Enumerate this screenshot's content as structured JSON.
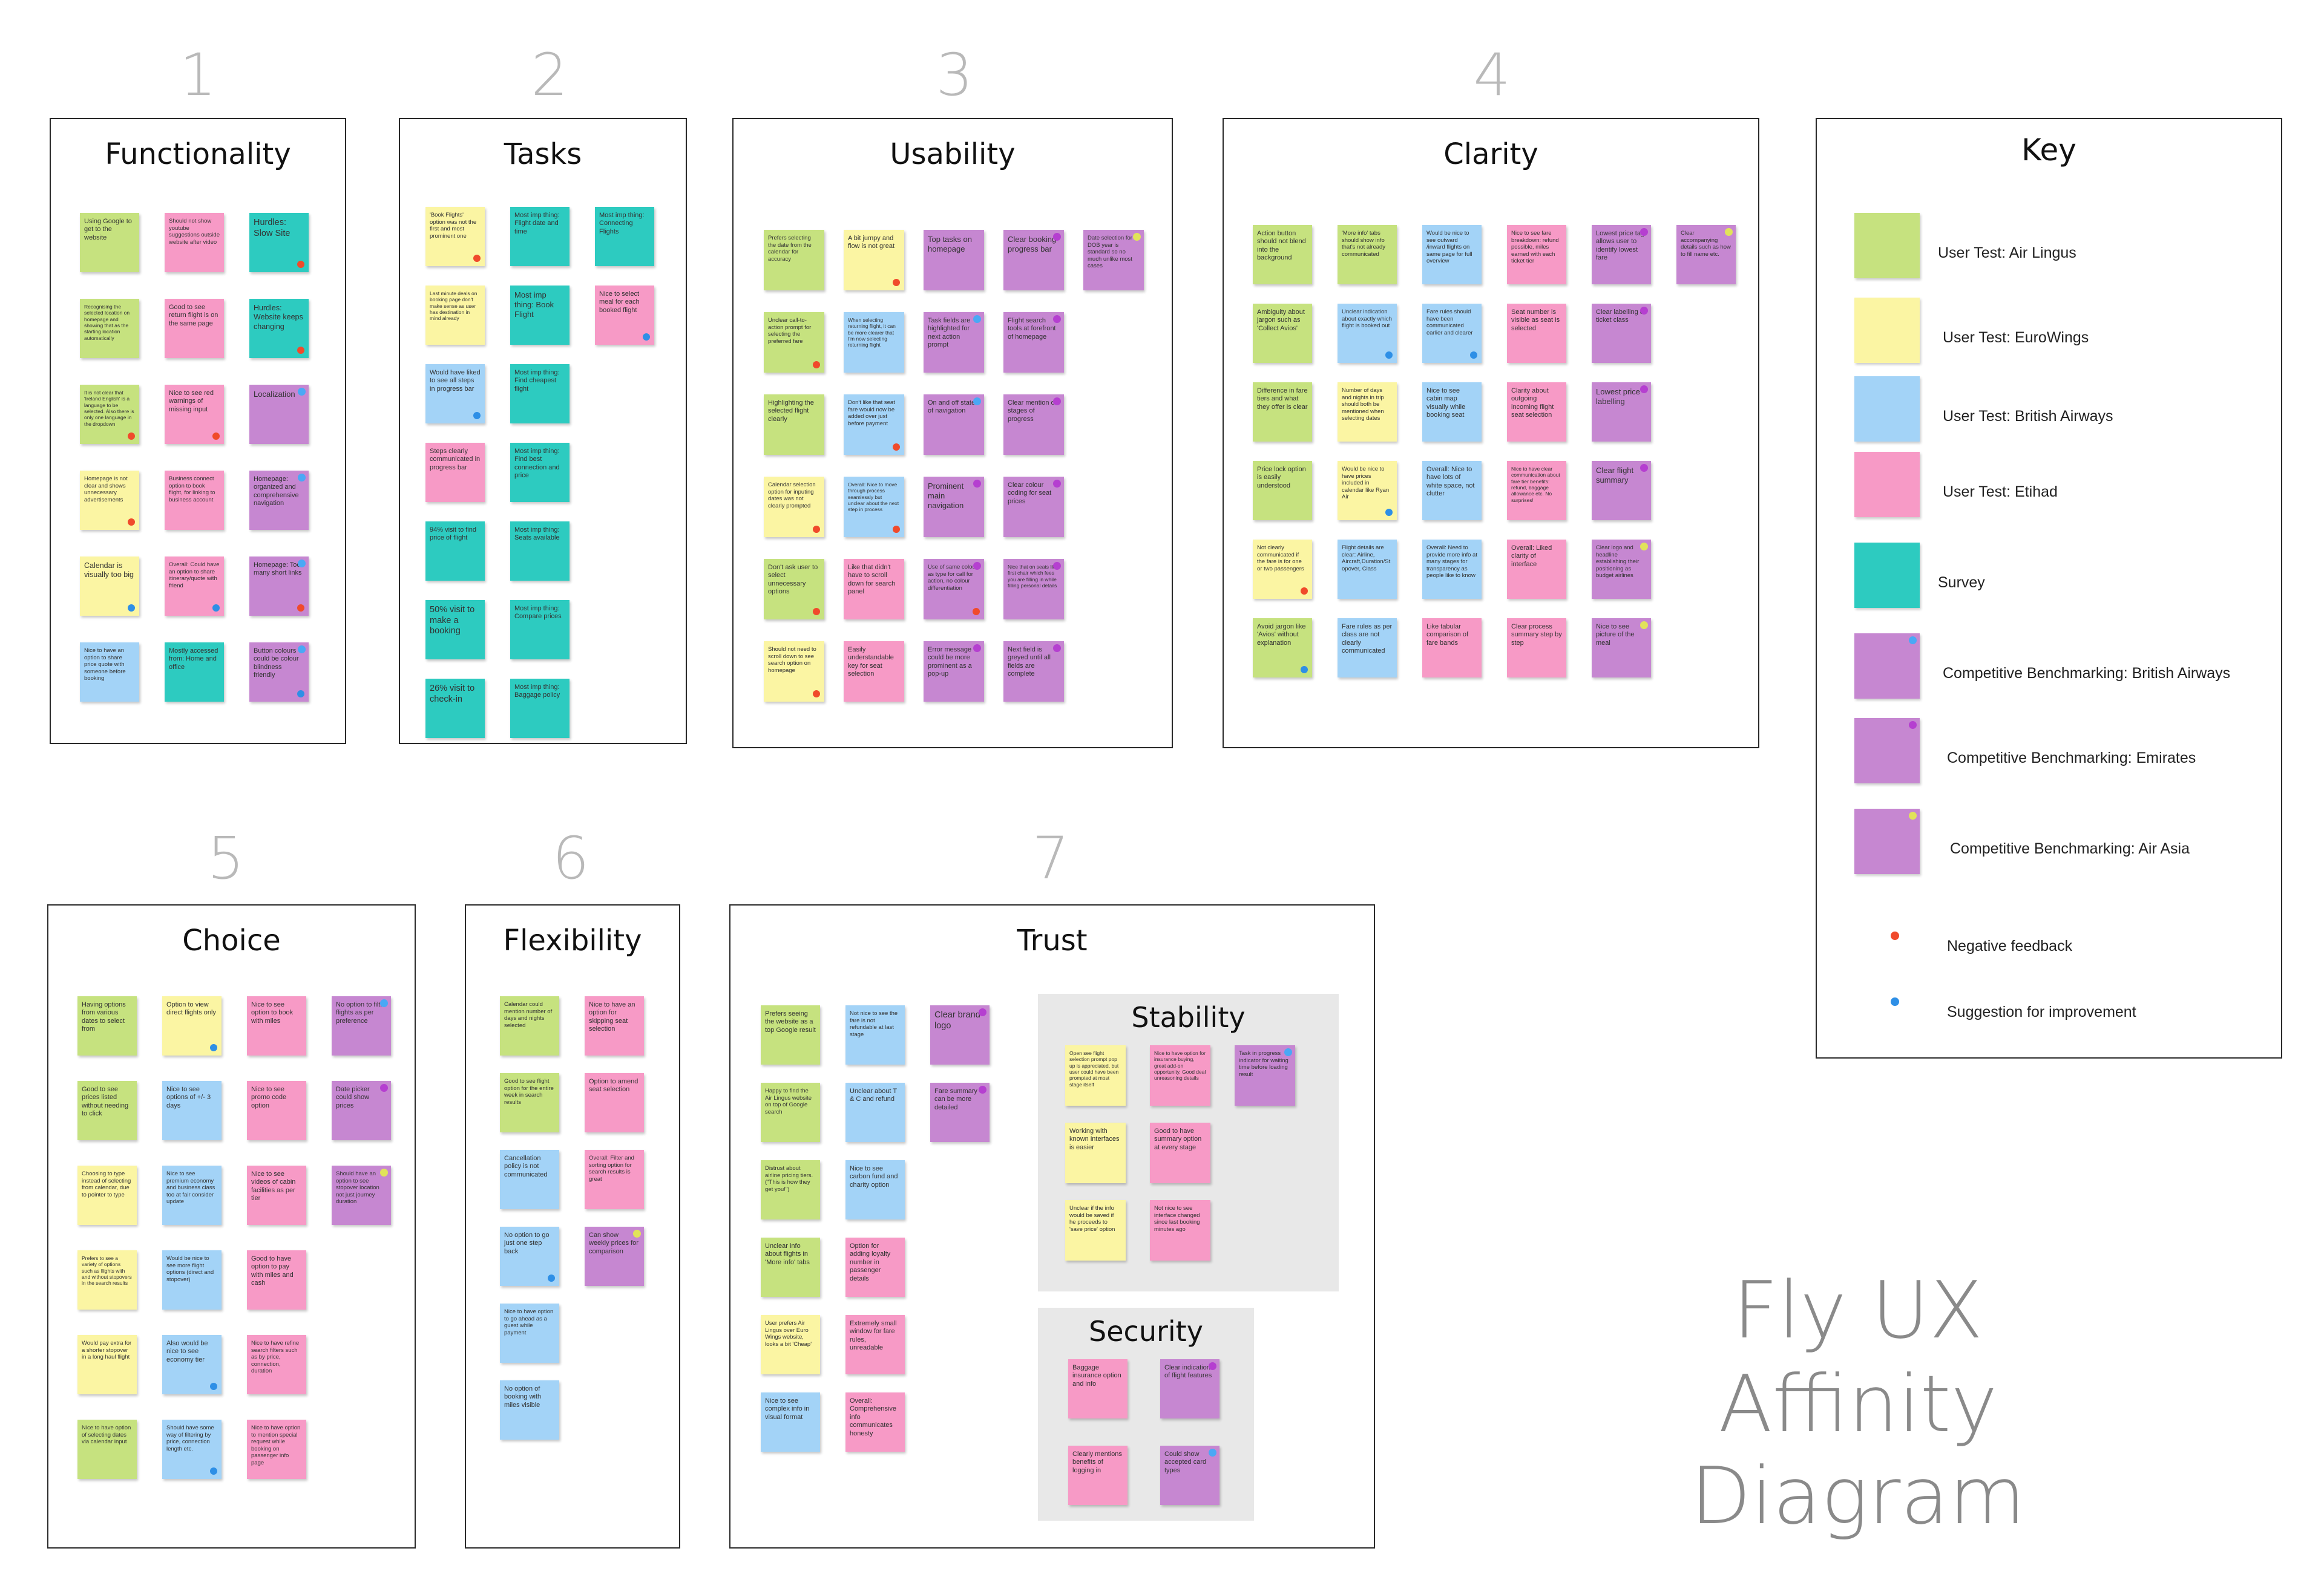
{
  "colors": {
    "air_lingus": "#c6e27f",
    "eurowings": "#fbf5a3",
    "british_airways": "#a3d3f7",
    "etihad": "#f79ac6",
    "survey": "#2dcbc0",
    "comp_ba": "#c687d1",
    "comp_emirates": "#c687d1",
    "comp_airasia": "#c687d1",
    "negative": "#f04a2b",
    "suggestion": "#2e8fe6",
    "dot_ba": "#4aa8f5",
    "dot_emirates": "#b53fd0",
    "dot_airasia": "#e1e35a"
  },
  "frames": [
    {
      "number": "1",
      "title": "Functionality"
    },
    {
      "number": "2",
      "title": "Tasks"
    },
    {
      "number": "3",
      "title": "Usability"
    },
    {
      "number": "4",
      "title": "Clarity"
    },
    {
      "number": "5",
      "title": "Choice"
    },
    {
      "number": "6",
      "title": "Flexibility"
    },
    {
      "number": "7",
      "title": "Trust"
    }
  ],
  "subframes": {
    "stability": "Stability",
    "security": "Security"
  },
  "key": {
    "title": "Key",
    "items": [
      {
        "label": "User Test: Air Lingus",
        "color": "air_lingus"
      },
      {
        "label": "User Test: EuroWings",
        "color": "eurowings"
      },
      {
        "label": "User Test: British Airways",
        "color": "british_airways"
      },
      {
        "label": "User Test: Etihad",
        "color": "etihad"
      },
      {
        "label": "Survey",
        "color": "survey"
      },
      {
        "label": "Competitive Benchmarking: British Airways",
        "color": "comp_ba"
      },
      {
        "label": "Competitive Benchmarking: Emirates",
        "color": "comp_emirates"
      },
      {
        "label": "Competitive Benchmarking: Air Asia",
        "color": "comp_airasia"
      }
    ],
    "negative": "Negative feedback",
    "suggestion": "Suggestion for improvement"
  },
  "big_title": {
    "line1": "Fly UX",
    "line2": "Affinity Diagram"
  },
  "notes": {
    "functionality": [
      [
        "Using Google to get to the website",
        "Should not show youtube suggestions outside website after video",
        "Hurdles: Slow Site"
      ],
      [
        "Recognising the selected location on homepage and showing that as the starting location automatically",
        "Good to see return flight is on the same page",
        "Hurdles: Website keeps changing"
      ],
      [
        "It is not clear that 'Ireland English' is a language to be selected. Also there is only one language in the dropdown",
        "Nice to see red warnings of missing input",
        "Localization"
      ],
      [
        "Homepage is not clear and shows unnecessary advertisements",
        "Business connect option to book flight, for linking to business account",
        "Homepage: organized and comprehensive navigation"
      ],
      [
        "Calendar is visually too big",
        "Overall: Could have an option to share itinerary/quote with friend",
        "Homepage: Too many short links"
      ],
      [
        "Nice to have an option to share price quote with someone before booking",
        "Mostly accessed from: Home and office",
        "Button colours could be colour blindness friendly"
      ]
    ],
    "tasks": [
      [
        "'Book Flights' option was not the first and most prominent one",
        "Most imp thing: Flight date and time",
        "Most imp thing: Connecting Flights"
      ],
      [
        "Last minute deals on booking page don't make sense as user has destination in mind already",
        "Most imp thing: Book Flight",
        "Nice to select meal for each booked flight"
      ],
      [
        "Would have liked to see all steps in progress bar",
        "Most imp thing: Find cheapest flight"
      ],
      [
        "Steps clearly communicated in progress bar",
        "Most imp thing: Find best connection and price"
      ],
      [
        "94% visit to find price of flight",
        "Most imp thing: Seats available"
      ],
      [
        "50% visit to make a booking",
        "Most imp thing: Compare prices"
      ],
      [
        "26% visit to check-in",
        "Most imp thing: Baggage policy"
      ]
    ],
    "usability": [
      [
        "Prefers selecting the date from the calendar for accuracy",
        "A bit jumpy and flow is not great",
        "Top tasks on homepage",
        "Clear booking progress bar",
        "Date selection for DOB year is standard so no much unlike most cases"
      ],
      [
        "Unclear call-to-action prompt for selecting the preferred fare",
        "When selecting returning flight, it can be more clearer that I'm now selecting returning flight",
        "Task fields are highlighted for next action prompt",
        "Flight search tools at forefront of homepage"
      ],
      [
        "Highlighting the selected flight clearly",
        "Don't like that seat fare would now be added over just before payment",
        "On and off states of navigation",
        "Clear mention of stages of progress"
      ],
      [
        "Calendar selection option for inputing dates was not clearly prompted",
        "Overall: Nice to move through process seamlessly but unclear about the next step in process",
        "Prominent main navigation",
        "Clear colour coding for seat prices"
      ],
      [
        "Don't ask user to select unnecessary options",
        "Like that didn't have to scroll down for search panel",
        "Use of same colour as type for call for action, no colour differentiation",
        "Nice that on seats like first chair which fees you are filling in while filling personal details"
      ],
      [
        "Should not need to scroll down to see search option on homepage",
        "Easily understandable key for seat selection",
        "Error message could be more prominent as a pop-up",
        "Next field is greyed until all fields are complete"
      ]
    ],
    "clarity": [
      [
        "Action button should not blend into the background",
        "'More info' tabs should show info that's not already communicated",
        "Would be nice to see outward /inward flights on same page for full overview",
        "Nice to see fare breakdown: refund possible, miles earned with each ticket tier",
        "Lowest price tag allows user to identify lowest fare",
        "Clear accompanying details such as how to fill name etc."
      ],
      [
        "Ambiguity about jargon such as 'Collect Avios'",
        "Unclear indication about exactly which flight is booked out",
        "Fare rules should have been communicated earlier and clearer",
        "Seat number is visible as seat is selected",
        "Clear labelling of ticket class"
      ],
      [
        "Difference in fare tiers and what they offer is clear",
        "Number of days and nights in trip should both be mentioned when selecting dates",
        "Nice to see cabin map visually while booking seat",
        "Clarity about outgoing incoming flight seat selection",
        "Lowest price labelling"
      ],
      [
        "Price lock option is easily understood",
        "Would be nice to have prices included in calendar like Ryan Air",
        "Overall: Nice to have lots of white space, not clutter",
        "Nice to have clear communication about fare tier benefits: refund, baggage allowance etc. No surprises!",
        "Clear flight summary"
      ],
      [
        "Not clearly communicated if the fare is for one or two passengers",
        "Flight details are clear: Airline, Aircraft,Duration/Stopover, Class",
        "Overall: Need to provide more info at many stages for transparency as people like to know",
        "Overall: Liked clarity of interface",
        "Clear logo and headline establishing their positioning as budget airlines"
      ],
      [
        "Avoid jargon like 'Avios' without explanation",
        "Fare rules as per class are not clearly communicated",
        "Like tabular comparison of fare bands",
        "Clear process summary step by step",
        "Nice to see picture of the meal"
      ]
    ],
    "choice": [
      [
        "Having options from various dates to select from",
        "Option to view direct flights only",
        "Nice to see option to book with miles",
        "No option to filter flights as per preference"
      ],
      [
        "Good to see prices listed without needing to click",
        "Nice to see options of +/- 3 days",
        "Nice to see promo code option",
        "Date picker could show prices"
      ],
      [
        "Choosing to type instead of selecting from calendar, due to pointer to type",
        "Nice to see premium economy and business class too at fair consider update",
        "Nice to see videos of cabin facilities as per tier",
        "Should have an option to see stopover location not just journey duration"
      ],
      [
        "Prefers to see a variety of options such as flights with and without stopovers in the search results",
        "Would be nice to see more flight options (direct and stopover)",
        "Good to have option to pay with miles and cash"
      ],
      [
        "Would pay extra for a shorter stopover in a long haul flight",
        "Also would be nice to see economy tier",
        "Nice to have refine search filters such as by price, connection, duration"
      ],
      [
        "Nice to have option of selecting dates via calendar input",
        "Should have some way of filtering by price, connection length etc.",
        "Nice to have option to mention special request while booking on passenger info page"
      ]
    ],
    "flexibility": [
      [
        "Calendar could mention number of days and nights selected",
        "Nice to have an option for skipping seat selection"
      ],
      [
        "Good to see flight option for the entire week in search results",
        "Option to amend seat selection"
      ],
      [
        "Cancellation policy is not communicated",
        "Overall: Filter and sorting option for search results is great"
      ],
      [
        "No option to go just one step back",
        "Can show weekly prices for comparison"
      ],
      [
        "Nice to have option to go ahead as a guest while payment"
      ],
      [
        "No option of booking with miles visible"
      ]
    ],
    "trust": [
      [
        "Prefers seeing the website as a top Google result",
        "Not nice to see the fare is not refundable at last stage",
        "Clear brand logo"
      ],
      [
        "Happy to find the Air Lingus website on top of Google search",
        "Unclear about T & C and refund",
        "Fare summary can be more detailed"
      ],
      [
        "Distrust about airline pricing tiers. (\"This is how they get you!\")",
        "Nice to see carbon fund and charity option"
      ],
      [
        "Unclear info about flights in 'More info' tabs",
        "Option for adding loyalty number in passenger details"
      ],
      [
        "User prefers Air Lingus over Euro Wings website, looks a bit 'Cheap'",
        "Extremely small window for fare rules, unreadable"
      ],
      [
        "Nice to see complex info in visual format",
        "Overall: Comprehensive info communicates honesty"
      ]
    ],
    "stability": [
      [
        "Open see flight selection prompt pop up is appreciated, but user could have been prompted at most stage itself",
        "Nice to have option for insurance buying, great add-on opportunity. Good deal unreasoning details",
        "Task in progress indicator for waiting time before loading result"
      ],
      [
        "Working with known interfaces is easier",
        "Good to have summary option at every stage"
      ],
      [
        "Unclear if the info would be saved if he proceeds to 'save price' option",
        "Not nice to see interface changed since last booking minutes ago"
      ]
    ],
    "security": [
      [
        "Baggage insurance option and info",
        "Clear indication of flight features"
      ],
      [
        "Clearly mentions benefits of logging in",
        "Could show accepted card types"
      ]
    ]
  }
}
